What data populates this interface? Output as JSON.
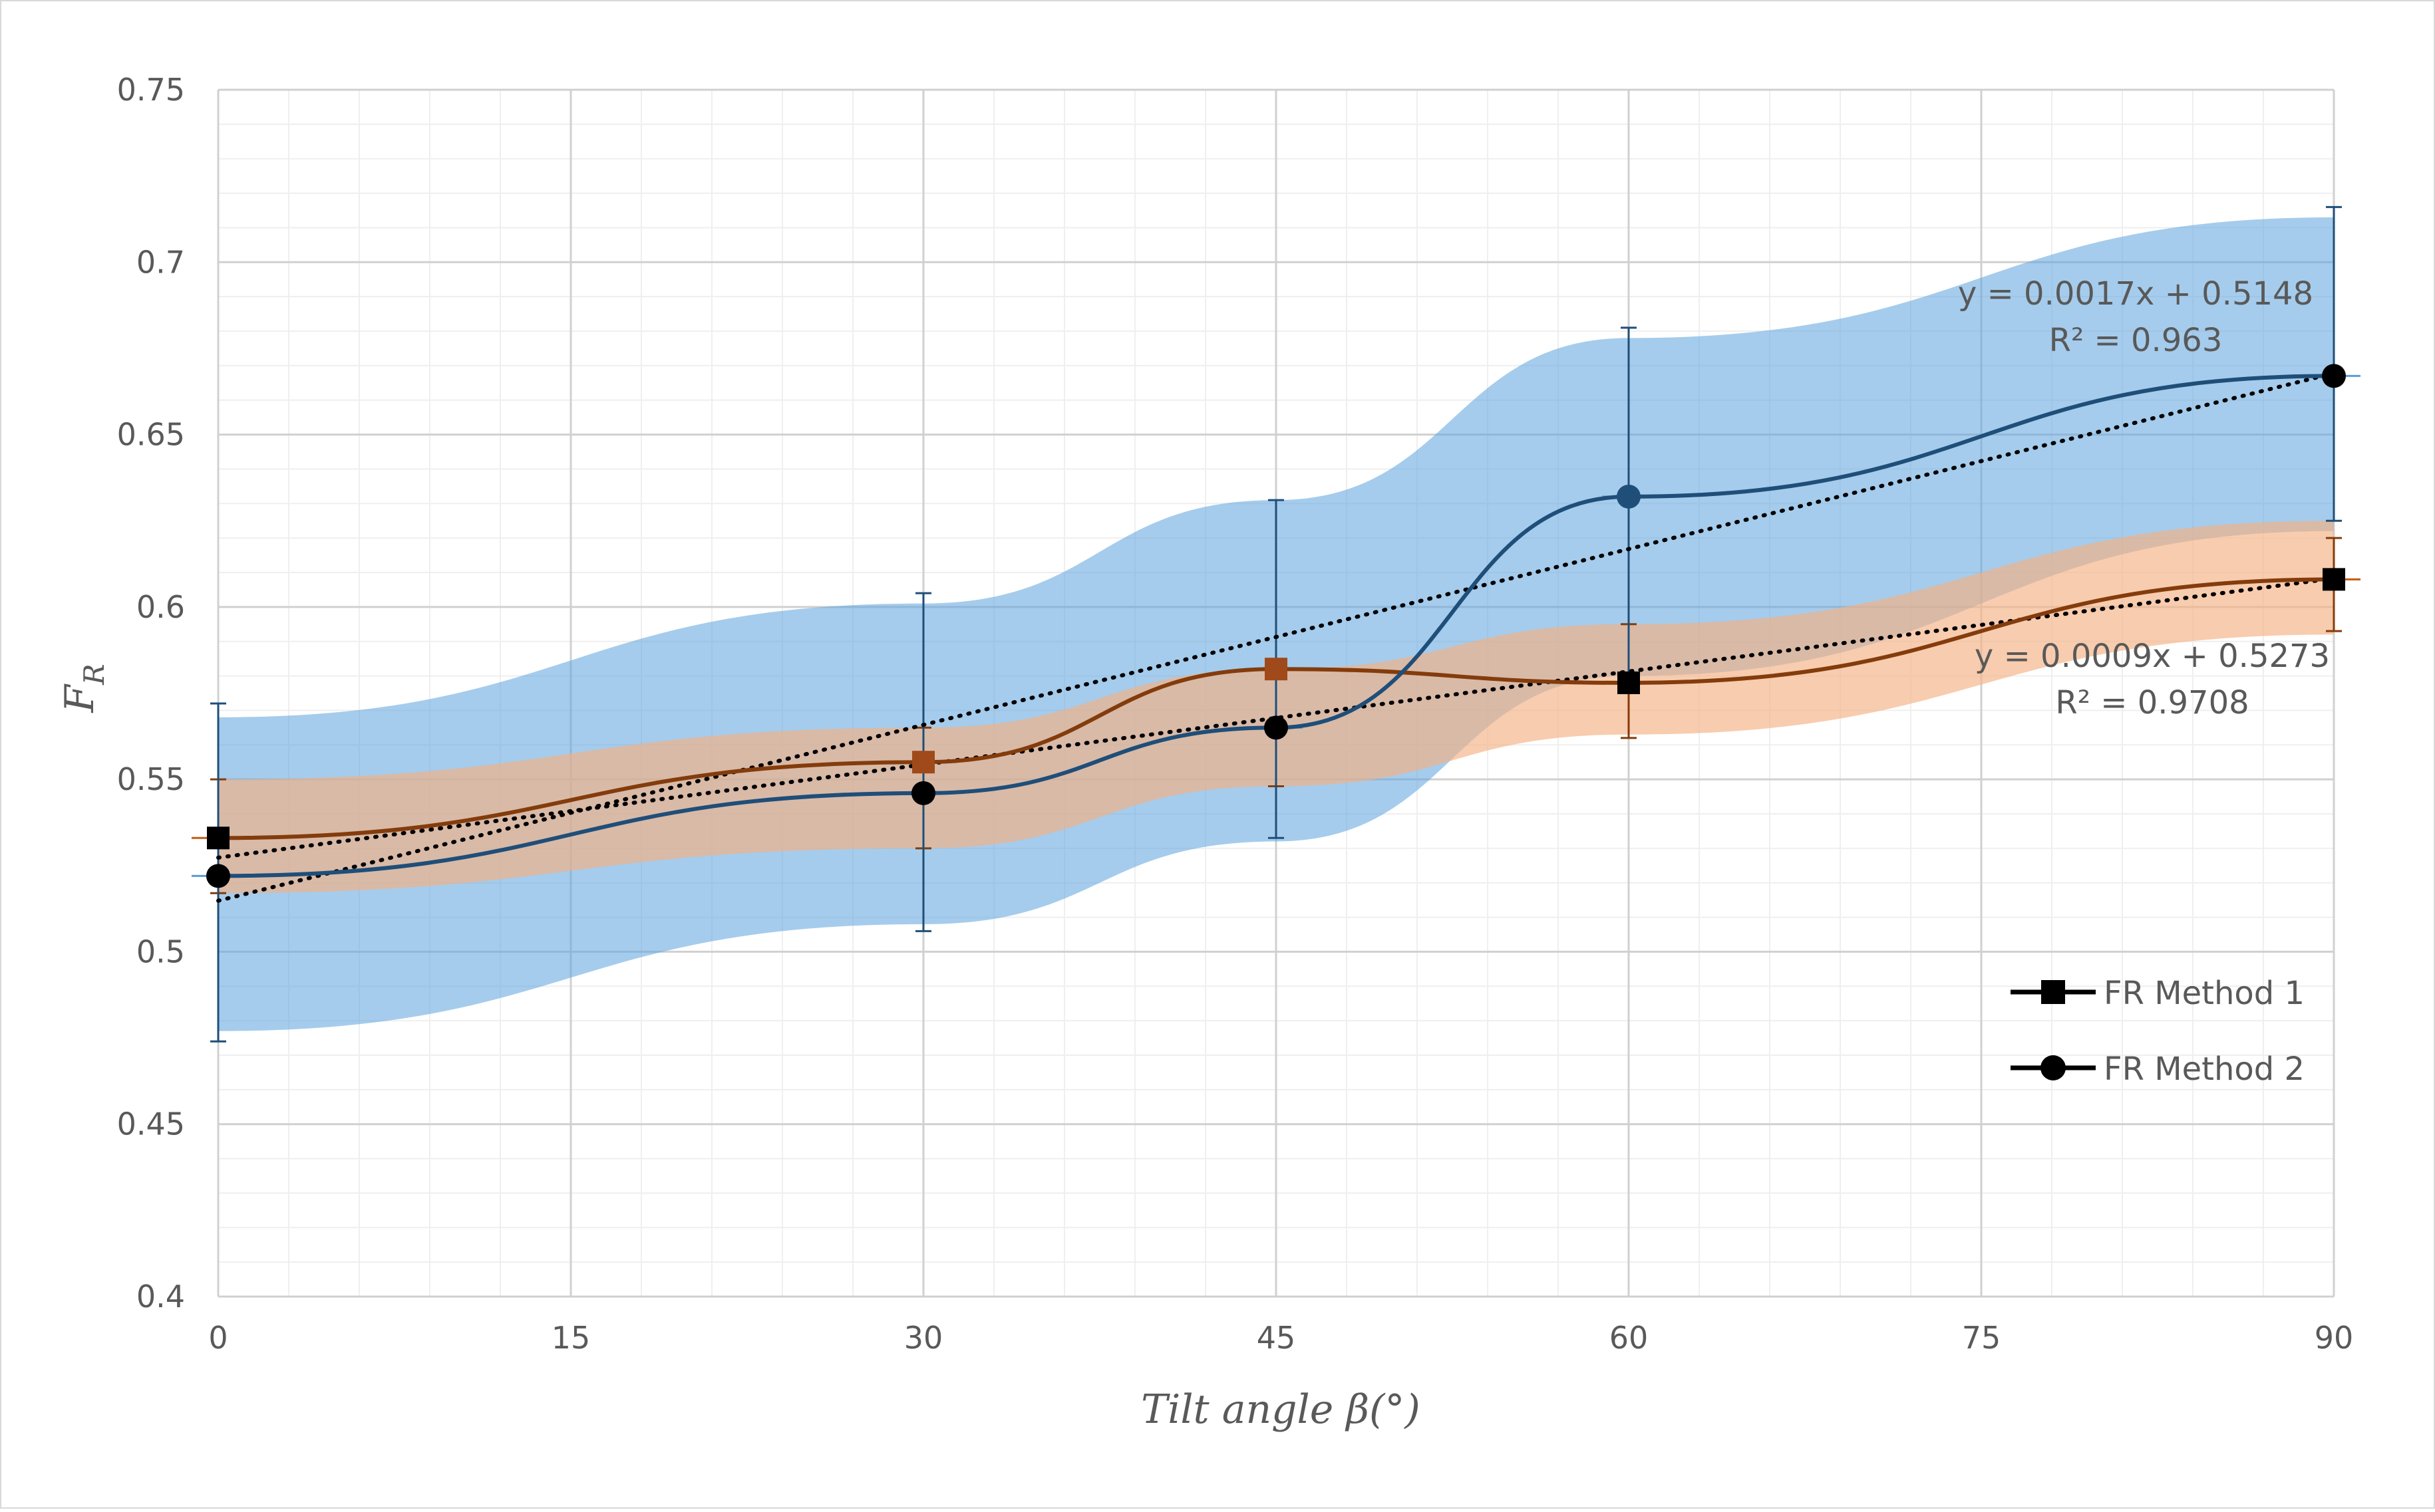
{
  "chart_data": {
    "type": "line",
    "title": "",
    "xlabel": "Tilt angle β(°)",
    "ylabel_main": "F",
    "ylabel_sub": "R",
    "xlim": [
      0,
      90
    ],
    "ylim": [
      0.4,
      0.75
    ],
    "x_ticks": [
      "0",
      "15",
      "30",
      "45",
      "60",
      "75",
      "90"
    ],
    "y_ticks": [
      "0.4",
      "0.45",
      "0.5",
      "0.55",
      "0.6",
      "0.65",
      "0.7",
      "0.75"
    ],
    "grid": "major and minor",
    "legend_position": "bottom-right",
    "x": [
      0,
      30,
      45,
      60,
      90
    ],
    "series": [
      {
        "name": "FR Method 1",
        "marker": "square",
        "color": "#843C0C",
        "band_color": "#F4B183",
        "values": [
          0.533,
          0.555,
          0.582,
          0.578,
          0.608
        ],
        "band_upper": [
          0.55,
          0.565,
          0.582,
          0.595,
          0.625
        ],
        "band_lower": [
          0.517,
          0.53,
          0.548,
          0.563,
          0.592
        ],
        "error_upper": [
          0.55,
          0.565,
          0.582,
          0.595,
          0.62
        ],
        "error_lower": [
          0.517,
          0.53,
          0.548,
          0.562,
          0.593
        ],
        "trendline": {
          "slope": 0.0009,
          "intercept": 0.5273,
          "equation": "y = 0.0009x + 0.5273",
          "r2": "R² = 0.9708"
        }
      },
      {
        "name": "FR Method 2",
        "marker": "circle",
        "color": "#1F4E79",
        "band_color": "#5BA3DC",
        "values": [
          0.522,
          0.546,
          0.565,
          0.632,
          0.667
        ],
        "band_upper": [
          0.568,
          0.601,
          0.631,
          0.678,
          0.713
        ],
        "band_lower": [
          0.477,
          0.508,
          0.532,
          0.58,
          0.622
        ],
        "error_upper": [
          0.572,
          0.604,
          0.631,
          0.681,
          0.716
        ],
        "error_lower": [
          0.474,
          0.506,
          0.533,
          0.581,
          0.625
        ],
        "trendline": {
          "slope": 0.0017,
          "intercept": 0.5148,
          "equation": "y = 0.0017x + 0.5148",
          "r2": "R² = 0.963"
        }
      }
    ]
  }
}
